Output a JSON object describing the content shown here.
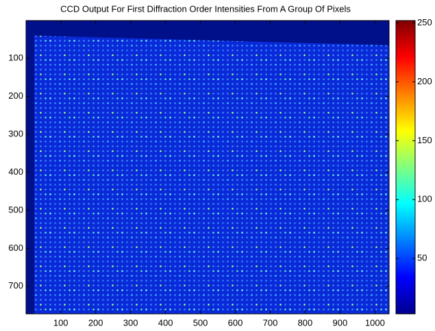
{
  "chart_data": {
    "type": "heatmap",
    "title": "CCD Output For First Diffraction Order Intensities From A Group Of Pixels",
    "xlim": [
      0.5,
      1040.5
    ],
    "ylim": [
      0.5,
      772.5
    ],
    "y_reversed": true,
    "xticks": [
      100,
      200,
      300,
      400,
      500,
      600,
      700,
      800,
      900,
      1000
    ],
    "yticks": [
      100,
      200,
      300,
      400,
      500,
      600,
      700
    ],
    "colorbar": {
      "colormap": "jet",
      "clim": [
        3,
        252
      ],
      "ticks": [
        50,
        100,
        150,
        200,
        250
      ]
    }
  }
}
